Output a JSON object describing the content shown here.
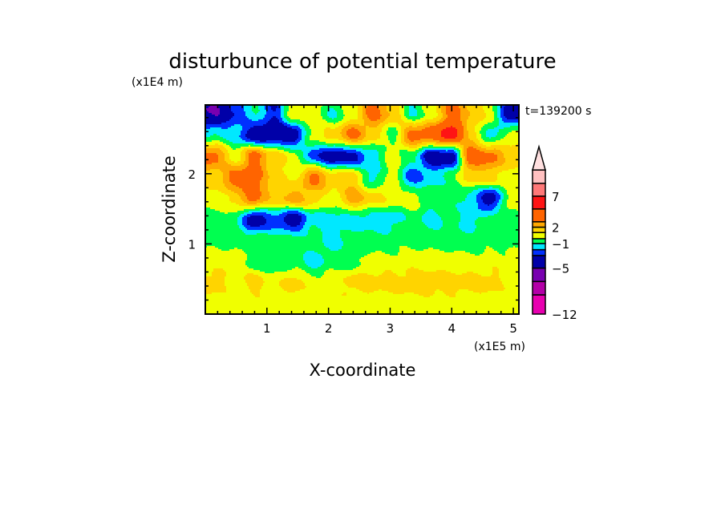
{
  "chart_data": {
    "type": "heatmap",
    "title": "disturbunce of potential temperature",
    "xlabel": "X-coordinate",
    "ylabel": "Z-coordinate",
    "x_scale_label": "(x1E5 m)",
    "y_scale_label": "(x1E4 m)",
    "time_label": "t=139200 s",
    "xlim": [
      0,
      5.09
    ],
    "ylim": [
      0,
      2.98
    ],
    "x_ticks": [
      1,
      2,
      3,
      4,
      5
    ],
    "x_tick_labels": [
      "1",
      "2",
      "3",
      "4",
      "5"
    ],
    "y_ticks": [
      1,
      2
    ],
    "y_tick_labels": [
      "1",
      "2"
    ],
    "minor_tick_step": 0.2,
    "colorbar": {
      "levels": [
        -12,
        -9,
        -7,
        -5,
        -3,
        -2,
        -1,
        0,
        1,
        2,
        3,
        5,
        7,
        9,
        11
      ],
      "labels": [
        {
          "value": -12,
          "text": "−12"
        },
        {
          "value": -5,
          "text": "−5"
        },
        {
          "value": -1,
          "text": "−1"
        },
        {
          "value": 2,
          "text": "2"
        },
        {
          "value": 7,
          "text": "7"
        }
      ],
      "colors": [
        "#e800b0",
        "#b400a8",
        "#7800b0",
        "#0000a8",
        "#0030ff",
        "#00e8ff",
        "#00ff50",
        "#f0ff00",
        "#ffd400",
        "#ffa800",
        "#ff6400",
        "#ff1414",
        "#ff7878",
        "#ffc0c0"
      ],
      "over_color": "#ffe0e0",
      "extend": "max"
    },
    "grid_x": [
      0.15,
      0.47,
      0.79,
      1.11,
      1.43,
      1.75,
      2.07,
      2.39,
      2.71,
      3.03,
      3.35,
      3.67,
      3.99,
      4.31,
      4.63,
      4.95
    ],
    "grid_z": [
      2.85,
      2.55,
      2.25,
      1.95,
      1.65,
      1.35,
      1.05,
      0.75,
      0.45,
      0.15
    ],
    "values": [
      [
        -5,
        -3,
        -1,
        -3,
        0.5,
        0.5,
        -1,
        0.5,
        3.5,
        2,
        -1,
        0.5,
        3.5,
        2,
        0.5,
        -4
      ],
      [
        -1,
        -1.5,
        -4,
        -4,
        -4,
        0.5,
        1.5,
        3.5,
        1.5,
        -0.5,
        3.5,
        4,
        6,
        1.5,
        -1.5,
        0.5
      ],
      [
        3.5,
        0.5,
        3.5,
        1.5,
        0.5,
        -2.5,
        -4,
        -3.5,
        -1.5,
        0.5,
        -0.5,
        -4,
        -4,
        4,
        3.5,
        1.5
      ],
      [
        1.5,
        3.5,
        3.5,
        1.5,
        0.5,
        3.5,
        1.5,
        1.5,
        -1.5,
        0.5,
        -2.5,
        -1.5,
        -0.5,
        1.5,
        1.5,
        0.5
      ],
      [
        0.5,
        1.5,
        3.5,
        1.5,
        2.5,
        1.5,
        0.5,
        2.5,
        1.5,
        0.5,
        0.5,
        -0.5,
        -0.5,
        -1.5,
        -4,
        0.5
      ],
      [
        -0.5,
        -0.5,
        -4,
        -2.5,
        -4,
        -1.5,
        -1.5,
        -1.5,
        -1.5,
        -1.5,
        -0.5,
        -1.5,
        -0.5,
        -1.5,
        -0.5,
        -0.5
      ],
      [
        -0.5,
        -0.5,
        -0.5,
        -0.5,
        -0.5,
        -0.5,
        -1.5,
        -0.5,
        -0.5,
        -0.5,
        -0.5,
        -0.5,
        -0.5,
        -0.5,
        -0.5,
        -0.5
      ],
      [
        0.5,
        0.5,
        -0.5,
        -0.5,
        -0.5,
        -1.5,
        -0.5,
        -0.5,
        0.5,
        0.5,
        0.5,
        0.5,
        0.5,
        0.5,
        0.5,
        0.5
      ],
      [
        1.5,
        0.5,
        1.5,
        0.5,
        1.5,
        0.5,
        0.5,
        1.5,
        1.5,
        1.5,
        1.5,
        1.5,
        1.5,
        1.5,
        1.5,
        0.5
      ],
      [
        0.5,
        0.5,
        0.5,
        0.5,
        0.5,
        0.5,
        0.5,
        0.5,
        0.5,
        0.5,
        0.5,
        0.5,
        0.5,
        0.5,
        0.5,
        0.5
      ]
    ]
  }
}
